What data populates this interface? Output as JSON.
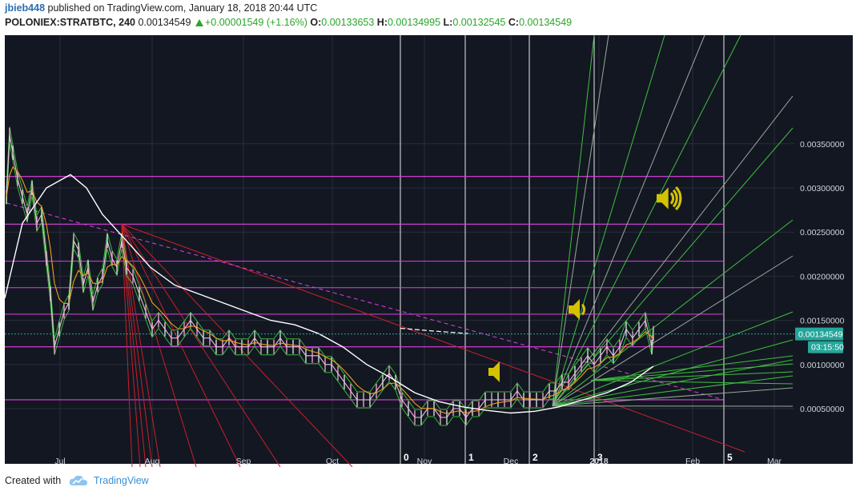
{
  "header": {
    "user": "jbieb448",
    "published": "published on TradingView.com, January 18, 2018 20:44 UTC",
    "symbol": "POLONIEX:STRATBTC, 240",
    "price": "0.00134549",
    "change": "+0.00001549 (+1.16%)",
    "open_label": "O:",
    "open": "0.00133653",
    "high_label": "H:",
    "high": "0.00134995",
    "low_label": "L:",
    "low": "0.00132545",
    "close_label": "C:",
    "close": "0.00134549"
  },
  "footer": {
    "created_with": "Created with",
    "brand": "TradingView"
  },
  "chart_data": {
    "type": "line",
    "yticks": [
      "0.00350000",
      "0.00300000",
      "0.00250000",
      "0.00200000",
      "0.00150000",
      "0.00100000",
      "0.00050000"
    ],
    "ytick_values": [
      0.0035,
      0.003,
      0.0025,
      0.002,
      0.0015,
      0.001,
      0.0005
    ],
    "ylim": [
      0.00012,
      0.0039
    ],
    "xticks": [
      "Jul",
      "Aug",
      "Sep",
      "Oct",
      "Nov",
      "Dec",
      "2018",
      "Feb",
      "Mar"
    ],
    "last_price_label": "0.00134549",
    "countdown_label": "03:15:50",
    "cycle_markers": [
      "0",
      "1",
      "2",
      "3",
      "5"
    ],
    "horizontal_levels": [
      0.00313,
      0.00259,
      0.00217,
      0.00187,
      0.00157,
      0.0012,
      0.0006
    ],
    "colors": {
      "background": "#131722",
      "grid": "#2a2e39",
      "price_line": "#ffffff",
      "levels": "#e040e0",
      "red_fan": "#c8202a",
      "green_fan": "#3fbf3f",
      "gray_fan": "#9aa89a",
      "ema_orange": "#f0a020",
      "envelope_green": "#40e040",
      "price_badge": "#26a69a",
      "speaker_icon": "#d4c200"
    }
  }
}
